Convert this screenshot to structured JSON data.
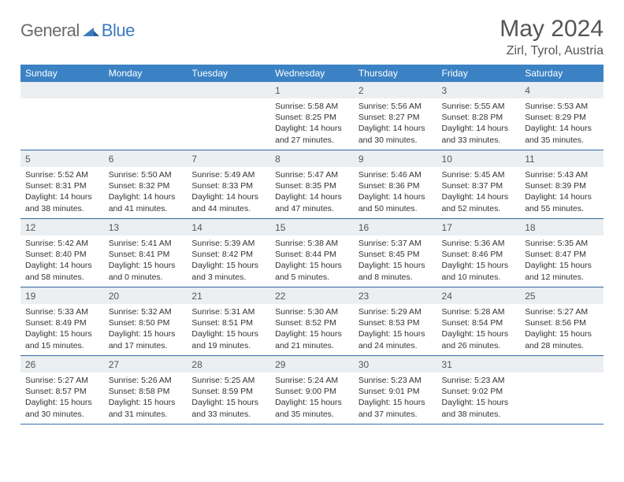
{
  "logo": {
    "text1": "General",
    "text2": "Blue"
  },
  "title": "May 2024",
  "location": "Zirl, Tyrol, Austria",
  "colors": {
    "header_bg": "#3b82c4",
    "header_text": "#ffffff",
    "daynum_bg": "#eceff1",
    "border": "#3b6fa8",
    "logo_gray": "#6a6a6a",
    "logo_blue": "#3b7bbf"
  },
  "weekdays": [
    "Sunday",
    "Monday",
    "Tuesday",
    "Wednesday",
    "Thursday",
    "Friday",
    "Saturday"
  ],
  "first_weekday_index": 3,
  "days": [
    {
      "n": 1,
      "sunrise": "5:58 AM",
      "sunset": "8:25 PM",
      "daylight": "14 hours and 27 minutes."
    },
    {
      "n": 2,
      "sunrise": "5:56 AM",
      "sunset": "8:27 PM",
      "daylight": "14 hours and 30 minutes."
    },
    {
      "n": 3,
      "sunrise": "5:55 AM",
      "sunset": "8:28 PM",
      "daylight": "14 hours and 33 minutes."
    },
    {
      "n": 4,
      "sunrise": "5:53 AM",
      "sunset": "8:29 PM",
      "daylight": "14 hours and 35 minutes."
    },
    {
      "n": 5,
      "sunrise": "5:52 AM",
      "sunset": "8:31 PM",
      "daylight": "14 hours and 38 minutes."
    },
    {
      "n": 6,
      "sunrise": "5:50 AM",
      "sunset": "8:32 PM",
      "daylight": "14 hours and 41 minutes."
    },
    {
      "n": 7,
      "sunrise": "5:49 AM",
      "sunset": "8:33 PM",
      "daylight": "14 hours and 44 minutes."
    },
    {
      "n": 8,
      "sunrise": "5:47 AM",
      "sunset": "8:35 PM",
      "daylight": "14 hours and 47 minutes."
    },
    {
      "n": 9,
      "sunrise": "5:46 AM",
      "sunset": "8:36 PM",
      "daylight": "14 hours and 50 minutes."
    },
    {
      "n": 10,
      "sunrise": "5:45 AM",
      "sunset": "8:37 PM",
      "daylight": "14 hours and 52 minutes."
    },
    {
      "n": 11,
      "sunrise": "5:43 AM",
      "sunset": "8:39 PM",
      "daylight": "14 hours and 55 minutes."
    },
    {
      "n": 12,
      "sunrise": "5:42 AM",
      "sunset": "8:40 PM",
      "daylight": "14 hours and 58 minutes."
    },
    {
      "n": 13,
      "sunrise": "5:41 AM",
      "sunset": "8:41 PM",
      "daylight": "15 hours and 0 minutes."
    },
    {
      "n": 14,
      "sunrise": "5:39 AM",
      "sunset": "8:42 PM",
      "daylight": "15 hours and 3 minutes."
    },
    {
      "n": 15,
      "sunrise": "5:38 AM",
      "sunset": "8:44 PM",
      "daylight": "15 hours and 5 minutes."
    },
    {
      "n": 16,
      "sunrise": "5:37 AM",
      "sunset": "8:45 PM",
      "daylight": "15 hours and 8 minutes."
    },
    {
      "n": 17,
      "sunrise": "5:36 AM",
      "sunset": "8:46 PM",
      "daylight": "15 hours and 10 minutes."
    },
    {
      "n": 18,
      "sunrise": "5:35 AM",
      "sunset": "8:47 PM",
      "daylight": "15 hours and 12 minutes."
    },
    {
      "n": 19,
      "sunrise": "5:33 AM",
      "sunset": "8:49 PM",
      "daylight": "15 hours and 15 minutes."
    },
    {
      "n": 20,
      "sunrise": "5:32 AM",
      "sunset": "8:50 PM",
      "daylight": "15 hours and 17 minutes."
    },
    {
      "n": 21,
      "sunrise": "5:31 AM",
      "sunset": "8:51 PM",
      "daylight": "15 hours and 19 minutes."
    },
    {
      "n": 22,
      "sunrise": "5:30 AM",
      "sunset": "8:52 PM",
      "daylight": "15 hours and 21 minutes."
    },
    {
      "n": 23,
      "sunrise": "5:29 AM",
      "sunset": "8:53 PM",
      "daylight": "15 hours and 24 minutes."
    },
    {
      "n": 24,
      "sunrise": "5:28 AM",
      "sunset": "8:54 PM",
      "daylight": "15 hours and 26 minutes."
    },
    {
      "n": 25,
      "sunrise": "5:27 AM",
      "sunset": "8:56 PM",
      "daylight": "15 hours and 28 minutes."
    },
    {
      "n": 26,
      "sunrise": "5:27 AM",
      "sunset": "8:57 PM",
      "daylight": "15 hours and 30 minutes."
    },
    {
      "n": 27,
      "sunrise": "5:26 AM",
      "sunset": "8:58 PM",
      "daylight": "15 hours and 31 minutes."
    },
    {
      "n": 28,
      "sunrise": "5:25 AM",
      "sunset": "8:59 PM",
      "daylight": "15 hours and 33 minutes."
    },
    {
      "n": 29,
      "sunrise": "5:24 AM",
      "sunset": "9:00 PM",
      "daylight": "15 hours and 35 minutes."
    },
    {
      "n": 30,
      "sunrise": "5:23 AM",
      "sunset": "9:01 PM",
      "daylight": "15 hours and 37 minutes."
    },
    {
      "n": 31,
      "sunrise": "5:23 AM",
      "sunset": "9:02 PM",
      "daylight": "15 hours and 38 minutes."
    }
  ],
  "labels": {
    "sunrise": "Sunrise:",
    "sunset": "Sunset:",
    "daylight": "Daylight:"
  }
}
